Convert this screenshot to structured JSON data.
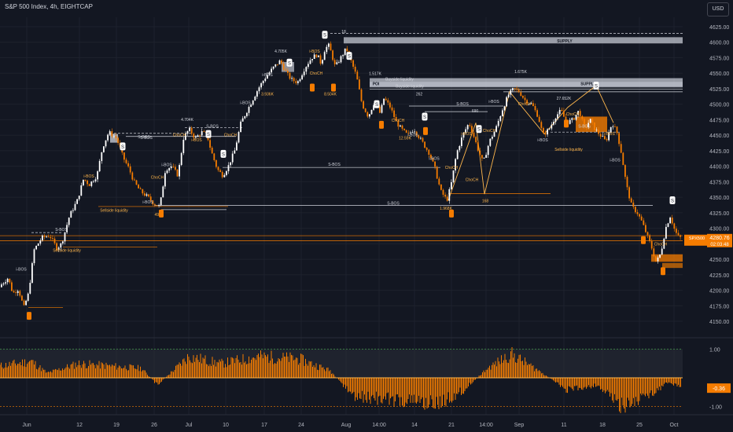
{
  "header": {
    "title": "S&P 500 Index, 4h, EIGHTCAP",
    "currency": "USD"
  },
  "price_tag": {
    "symbol": "SPX500",
    "price": "4280.76",
    "countdown": "02:03:48"
  },
  "oscillator_tag": {
    "value": "-0.36"
  },
  "colors": {
    "background": "#131722",
    "bull": "#ffffff",
    "bear": "#f57c00",
    "zone": "#c5c9d3",
    "bos": "#d1d4dc",
    "accent": "#ffb74d",
    "price_tag": "#f57c00",
    "grid": "#1e222d"
  },
  "chart_data": [
    {
      "type": "candlestick",
      "ylim": [
        4125,
        4650
      ],
      "y_ticks": [
        "4625.00",
        "4600.00",
        "4575.00",
        "4550.00",
        "4525.00",
        "4500.00",
        "4475.00",
        "4450.00",
        "4425.00",
        "4400.00",
        "4375.00",
        "4350.00",
        "4325.00",
        "4300.00",
        "4275.00",
        "4250.00",
        "4225.00",
        "4200.00",
        "4175.00",
        "4150.00"
      ],
      "x_ticks": [
        "Jun",
        "12",
        "19",
        "26",
        "Jul",
        "10",
        "17",
        "24",
        "Aug",
        "14:00",
        "14",
        "21",
        "14:00",
        "Sep",
        "11",
        "18",
        "25",
        "Oct"
      ],
      "price_path": [
        [
          0,
          4205
        ],
        [
          12,
          4220
        ],
        [
          18,
          4195
        ],
        [
          25,
          4202
        ],
        [
          32,
          4172
        ],
        [
          38,
          4195
        ],
        [
          45,
          4265
        ],
        [
          55,
          4285
        ],
        [
          65,
          4288
        ],
        [
          74,
          4268
        ],
        [
          80,
          4275
        ],
        [
          90,
          4320
        ],
        [
          100,
          4345
        ],
        [
          108,
          4380
        ],
        [
          115,
          4370
        ],
        [
          125,
          4385
        ],
        [
          132,
          4430
        ],
        [
          140,
          4455
        ],
        [
          150,
          4445
        ],
        [
          158,
          4415
        ],
        [
          166,
          4395
        ],
        [
          172,
          4375
        ],
        [
          180,
          4360
        ],
        [
          190,
          4350
        ],
        [
          197,
          4340
        ],
        [
          205,
          4335
        ],
        [
          212,
          4395
        ],
        [
          220,
          4400
        ],
        [
          228,
          4385
        ],
        [
          235,
          4445
        ],
        [
          242,
          4460
        ],
        [
          250,
          4445
        ],
        [
          258,
          4455
        ],
        [
          265,
          4450
        ],
        [
          270,
          4425
        ],
        [
          278,
          4395
        ],
        [
          285,
          4385
        ],
        [
          292,
          4400
        ],
        [
          300,
          4425
        ],
        [
          308,
          4470
        ],
        [
          318,
          4495
        ],
        [
          330,
          4525
        ],
        [
          340,
          4545
        ],
        [
          350,
          4560
        ],
        [
          358,
          4570
        ],
        [
          366,
          4550
        ],
        [
          372,
          4540
        ],
        [
          380,
          4535
        ],
        [
          390,
          4560
        ],
        [
          398,
          4575
        ],
        [
          405,
          4580
        ],
        [
          410,
          4565
        ],
        [
          415,
          4590
        ],
        [
          420,
          4595
        ],
        [
          428,
          4560
        ],
        [
          435,
          4575
        ],
        [
          442,
          4590
        ],
        [
          448,
          4570
        ],
        [
          455,
          4545
        ],
        [
          462,
          4500
        ],
        [
          470,
          4480
        ],
        [
          478,
          4505
        ],
        [
          485,
          4485
        ],
        [
          490,
          4510
        ],
        [
          498,
          4495
        ],
        [
          506,
          4470
        ],
        [
          512,
          4460
        ],
        [
          520,
          4450
        ],
        [
          528,
          4460
        ],
        [
          538,
          4440
        ],
        [
          548,
          4420
        ],
        [
          555,
          4395
        ],
        [
          562,
          4360
        ],
        [
          570,
          4345
        ],
        [
          576,
          4375
        ],
        [
          582,
          4420
        ],
        [
          590,
          4450
        ],
        [
          598,
          4470
        ],
        [
          605,
          4445
        ],
        [
          610,
          4425
        ],
        [
          616,
          4405
        ],
        [
          624,
          4440
        ],
        [
          632,
          4460
        ],
        [
          640,
          4490
        ],
        [
          648,
          4515
        ],
        [
          655,
          4525
        ],
        [
          662,
          4520
        ],
        [
          670,
          4505
        ],
        [
          678,
          4500
        ],
        [
          686,
          4480
        ],
        [
          692,
          4450
        ],
        [
          700,
          4460
        ],
        [
          708,
          4480
        ],
        [
          715,
          4490
        ],
        [
          722,
          4470
        ],
        [
          730,
          4475
        ],
        [
          738,
          4490
        ],
        [
          745,
          4460
        ],
        [
          752,
          4475
        ],
        [
          758,
          4460
        ],
        [
          765,
          4450
        ],
        [
          772,
          4440
        ],
        [
          780,
          4470
        ],
        [
          786,
          4455
        ],
        [
          792,
          4420
        ],
        [
          798,
          4370
        ],
        [
          805,
          4335
        ],
        [
          812,
          4325
        ],
        [
          818,
          4310
        ],
        [
          824,
          4290
        ],
        [
          830,
          4270
        ],
        [
          836,
          4245
        ],
        [
          842,
          4260
        ],
        [
          848,
          4300
        ],
        [
          854,
          4320
        ],
        [
          860,
          4295
        ],
        [
          865,
          4285
        ]
      ],
      "last_price": 4280.76
    },
    {
      "type": "bar",
      "name": "oscillator",
      "ylim": [
        -1.3,
        1.3
      ],
      "y_ticks": [
        "1.00",
        "-1.00"
      ],
      "last_value": -0.36
    }
  ],
  "annotations": {
    "bos_labels": [
      "S-BOS",
      "S-BOS",
      "S-BOS",
      "S-BOS",
      "S-BOS",
      "S-BOS",
      "S-BOS",
      "S-BOS"
    ],
    "ibos_labels": [
      "i-BOS",
      "i-BOS",
      "i-BOS",
      "i-BOS",
      "i-BOS",
      "i-BOS",
      "i-BOS",
      "i-BOS",
      "i-BOS",
      "i-BOS",
      "i-BOS",
      "i-BOS",
      "i-BOS",
      "i-BOS",
      "i-BOS"
    ],
    "choch_labels": [
      "ChoCH",
      "ChoCH",
      "ChoCH",
      "ChoCH",
      "ChoCH",
      "ChoCH",
      "ChoCH",
      "ChoCH",
      "ChoCH",
      "ChoCH",
      "ChoCH"
    ],
    "volume_labels": [
      "4.705K",
      "4.704K",
      "1.517K",
      "1.675K",
      "27.652K",
      "262",
      "690",
      "3.936K",
      "8.504K",
      "12.59K",
      "1.968K",
      "49K",
      "168",
      "18"
    ],
    "liquidity_labels": [
      "Sellside liquidity",
      "Sellside liquidity",
      "Sellside liquidity",
      "Buyside liquidity",
      "Buyside liquidity"
    ],
    "zone_labels": [
      "SUPPLY",
      "SUPPLY",
      "POI",
      "POI"
    ],
    "misc_labels": [
      "S",
      "S",
      "S",
      "S",
      "S",
      "S",
      "S",
      "S",
      "S",
      "S",
      "S"
    ]
  }
}
